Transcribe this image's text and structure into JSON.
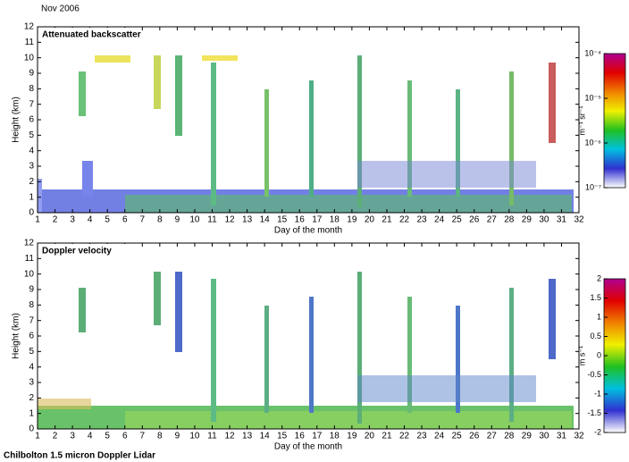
{
  "header": {
    "date": "Nov 2006"
  },
  "footer": {
    "caption": "Chilbolton 1.5 micron Doppler Lidar"
  },
  "chart_data": [
    {
      "type": "heatmap",
      "title": "Attenuated backscatter",
      "xlabel": "Day of the month",
      "ylabel": "Height (km)",
      "xlim": [
        1,
        32
      ],
      "xticks": [
        1,
        2,
        3,
        4,
        5,
        6,
        7,
        8,
        9,
        10,
        11,
        12,
        13,
        14,
        15,
        16,
        17,
        18,
        19,
        20,
        21,
        22,
        23,
        24,
        25,
        26,
        27,
        28,
        29,
        30,
        31,
        32
      ],
      "ylim": [
        0,
        12
      ],
      "yticks": [
        0,
        1,
        2,
        3,
        4,
        5,
        6,
        7,
        8,
        9,
        10,
        11,
        12
      ],
      "colorbar": {
        "label": "m⁻¹ sr⁻¹",
        "log_scale": true,
        "lim": [
          -7,
          -4
        ],
        "ticks": [
          {
            "value": -4,
            "label": "10⁻⁴"
          },
          {
            "value": -5,
            "label": "10⁻⁵"
          },
          {
            "value": -6,
            "label": "10⁻⁶"
          },
          {
            "value": -7,
            "label": "10⁻⁷"
          }
        ],
        "colors": [
          "#ffffff",
          "#3030d0",
          "#00c0e0",
          "#20c020",
          "#f0f000",
          "#f08000",
          "#e00000",
          "#b00090"
        ]
      }
    },
    {
      "type": "heatmap",
      "title": "Doppler velocity",
      "xlabel": "Day of the month",
      "ylabel": "Height (km)",
      "xlim": [
        1,
        32
      ],
      "xticks": [
        1,
        2,
        3,
        4,
        5,
        6,
        7,
        8,
        9,
        10,
        11,
        12,
        13,
        14,
        15,
        16,
        17,
        18,
        19,
        20,
        21,
        22,
        23,
        24,
        25,
        26,
        27,
        28,
        29,
        30,
        31,
        32
      ],
      "ylim": [
        0,
        12
      ],
      "yticks": [
        0,
        1,
        2,
        3,
        4,
        5,
        6,
        7,
        8,
        9,
        10,
        11,
        12
      ],
      "colorbar": {
        "label": "m s⁻¹",
        "log_scale": false,
        "lim": [
          -2,
          2
        ],
        "ticks": [
          2,
          1.5,
          1,
          0.5,
          0,
          -0.5,
          -1,
          -1.5,
          -2
        ],
        "colors": [
          "#ffffff",
          "#3030d0",
          "#00c0e0",
          "#20c020",
          "#f0f000",
          "#f08000",
          "#e00000",
          "#b00090"
        ]
      }
    }
  ]
}
